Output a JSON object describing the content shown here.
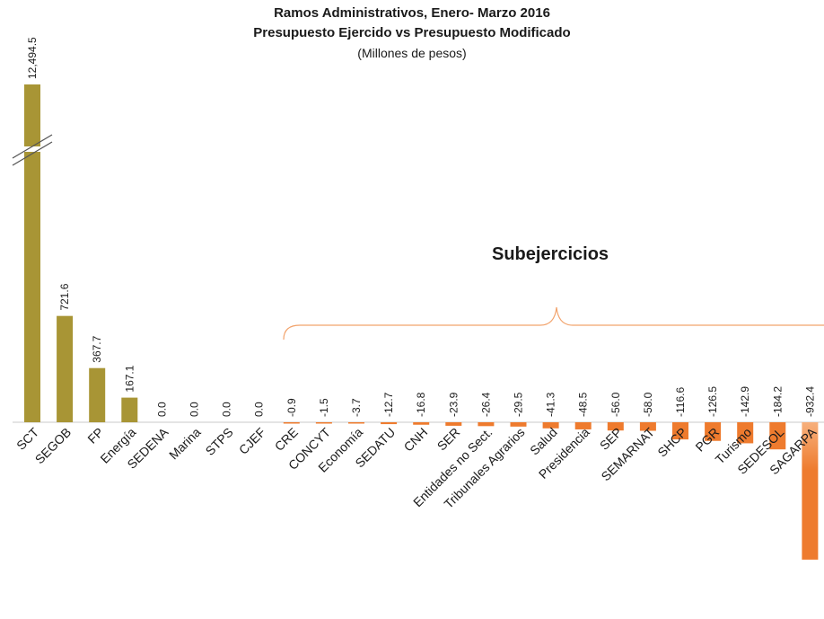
{
  "chart_data": {
    "type": "bar",
    "title": "Ramos Administrativos, Enero- Marzo 2016",
    "subtitle": "Presupuesto Ejercido vs  Presupuesto Modificado",
    "unit": "(Millones de pesos)",
    "annotation": "Subejercicios",
    "axis_break": "SCT",
    "colors": {
      "positive": "#a89535",
      "negative": "#ee7b2e",
      "negative_light": "#f7b07c",
      "zero_line": "#c8c8c8"
    },
    "categories": [
      "SCT",
      "SEGOB",
      "FP",
      "Energía",
      "SEDENA",
      "Marina",
      "STPS",
      "CJEF",
      "CRE",
      "CONCYT",
      "Economía",
      "SEDATU",
      "CNH",
      "SER",
      "Entidades no Sect.",
      "Tribunales Agrarios",
      "Salud",
      "Presidencia",
      "SEP",
      "SEMARNAT",
      "SHCP",
      "PGR",
      "Turismo",
      "SEDESOL",
      "SAGARPA"
    ],
    "values": [
      12494.5,
      721.6,
      367.7,
      167.1,
      0.0,
      0.0,
      0.0,
      0.0,
      -0.9,
      -1.5,
      -3.7,
      -12.7,
      -16.8,
      -23.9,
      -26.4,
      -29.5,
      -41.3,
      -48.5,
      -56.0,
      -58.0,
      -116.6,
      -126.5,
      -142.9,
      -184.2,
      -932.4
    ],
    "value_labels": [
      "12,494.5",
      "721.6",
      "367.7",
      "167.1",
      "0.0",
      "0.0",
      "0.0",
      "0.0",
      "-0.9",
      "-1.5",
      "-3.7",
      "-12.7",
      "-16.8",
      "-23.9",
      "-26.4",
      "-29.5",
      "-41.3",
      "-48.5",
      "-56.0",
      "-58.0",
      "-116.6",
      "-126.5",
      "-142.9",
      "-184.2",
      "-932.4"
    ]
  }
}
